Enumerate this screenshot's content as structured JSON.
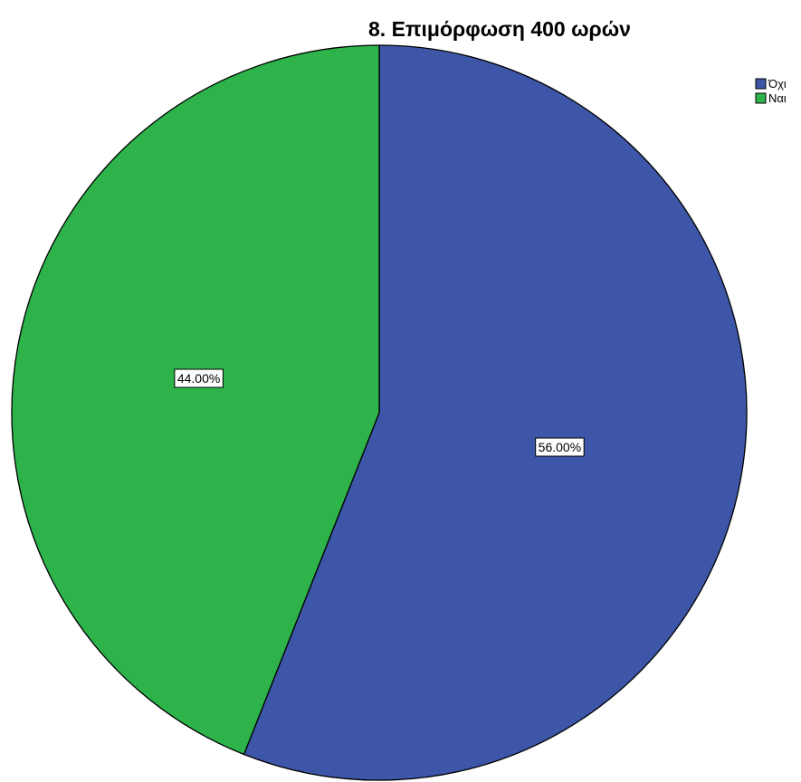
{
  "chart_data": {
    "type": "pie",
    "title": "8.  Επιμόρφωση 400 ωρών",
    "legend_position": "top-right",
    "categories": [
      "Όχι",
      "Ναι"
    ],
    "values": [
      56.0,
      44.0
    ],
    "data_labels": [
      "56.00%",
      "44.00%"
    ],
    "colors": [
      "#3d56a8",
      "#2db34a"
    ]
  }
}
